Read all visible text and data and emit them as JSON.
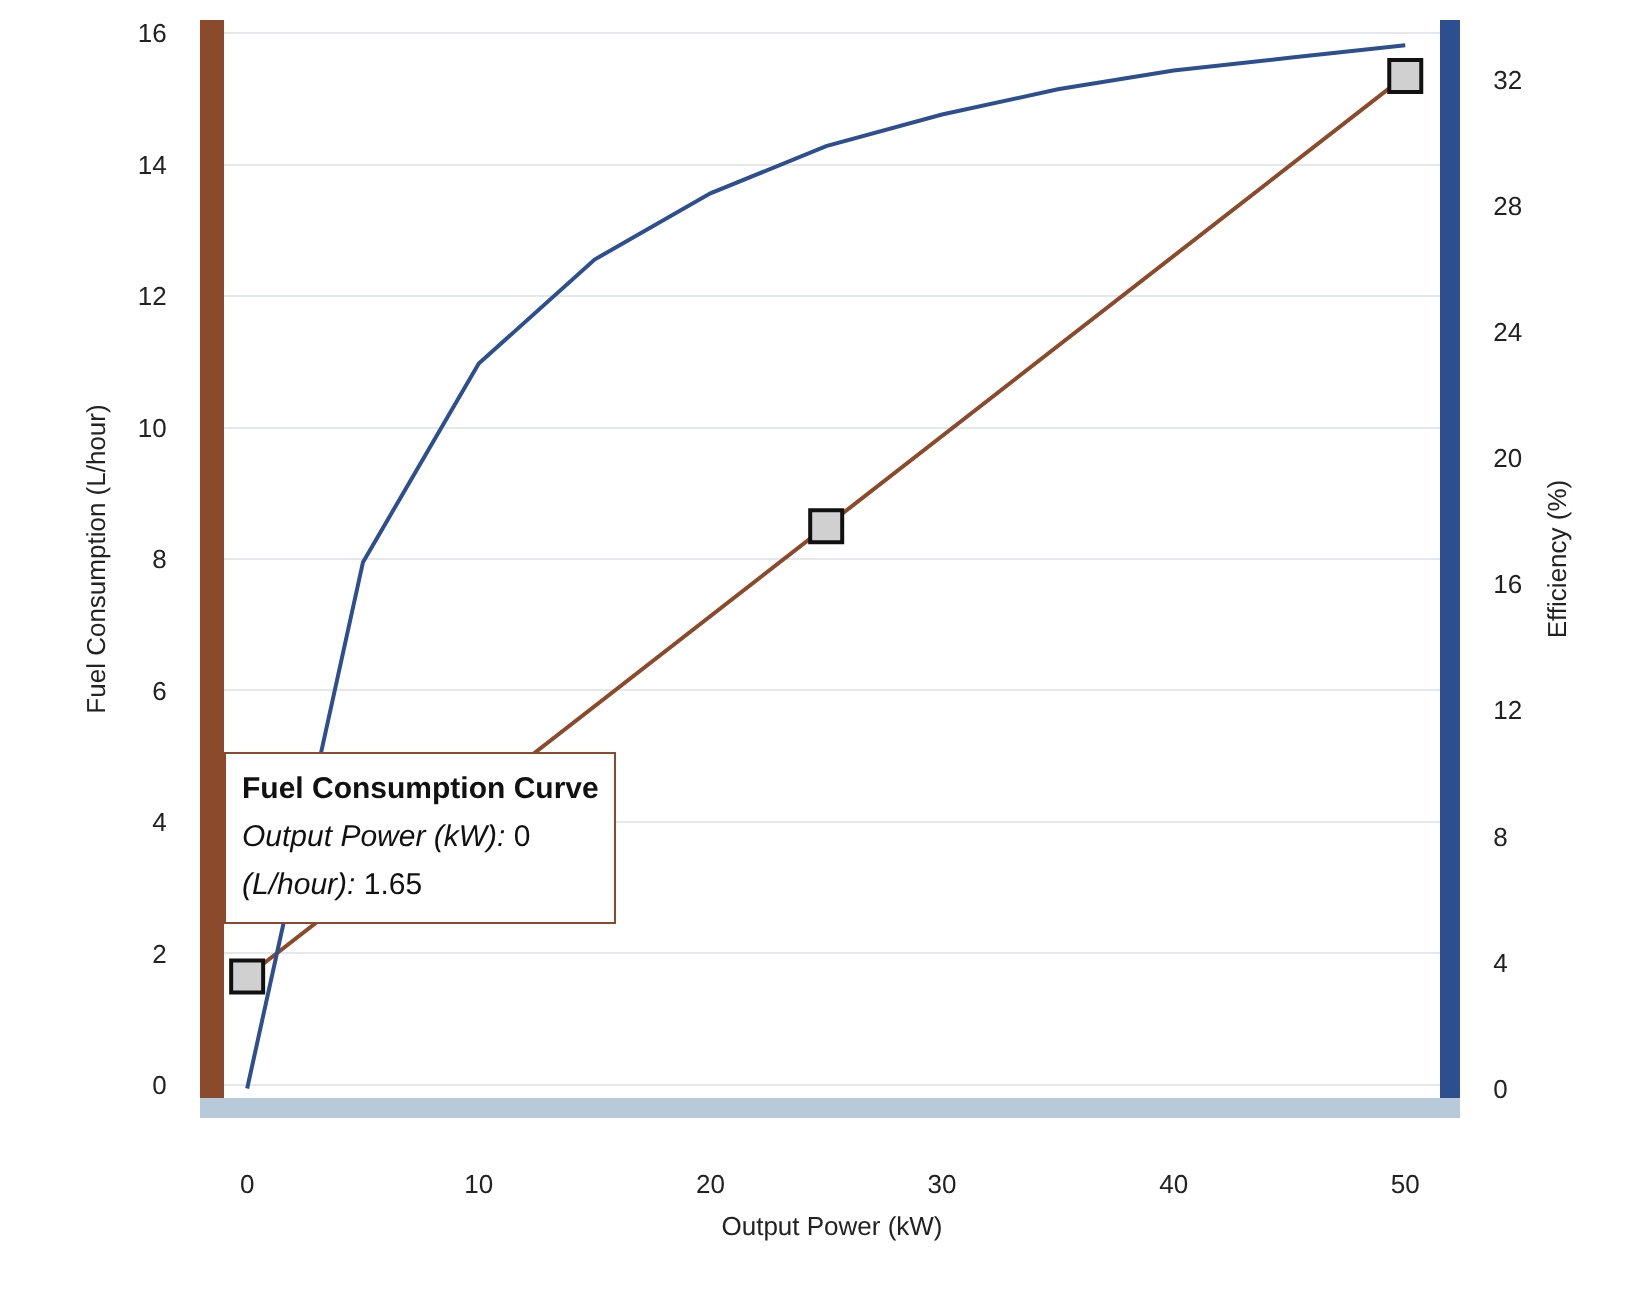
{
  "chart_data": {
    "type": "line",
    "xlabel": "Output Power (kW)",
    "ylabel": "Fuel Consumption (L/hour)",
    "y2label": "Efficiency (%)",
    "series": [
      {
        "color": "#2e4f8f",
        "axis": "y2",
        "marker": "none",
        "x": [
          0,
          5,
          10,
          15,
          20,
          25,
          30,
          35,
          40,
          45,
          50
        ],
        "values": [
          0,
          16.7,
          23.0,
          26.3,
          28.4,
          29.9,
          30.9,
          31.7,
          32.3,
          32.7,
          33.1
        ]
      },
      {
        "color": "#8b4a2b",
        "marker": "square",
        "x": [
          0,
          25,
          50
        ],
        "values": [
          1.65,
          8.5,
          15.35
        ]
      }
    ],
    "xlim": [
      -1,
      51.5
    ],
    "xticks": [
      0,
      10,
      20,
      30,
      40,
      50
    ],
    "ylim": [
      -0.2,
      16.2
    ],
    "yticks": [
      0,
      2,
      4,
      6,
      8,
      10,
      12,
      14,
      16
    ],
    "y2lim": [
      -0.3,
      33.9
    ],
    "y2ticks": [
      0,
      4,
      8,
      12,
      16,
      20,
      24,
      28,
      32
    ],
    "grid": "y",
    "annotations": [
      "Fuel Consumption Curve",
      "Output Power (kW): 0",
      "(L/hour): 1.65"
    ]
  }
}
